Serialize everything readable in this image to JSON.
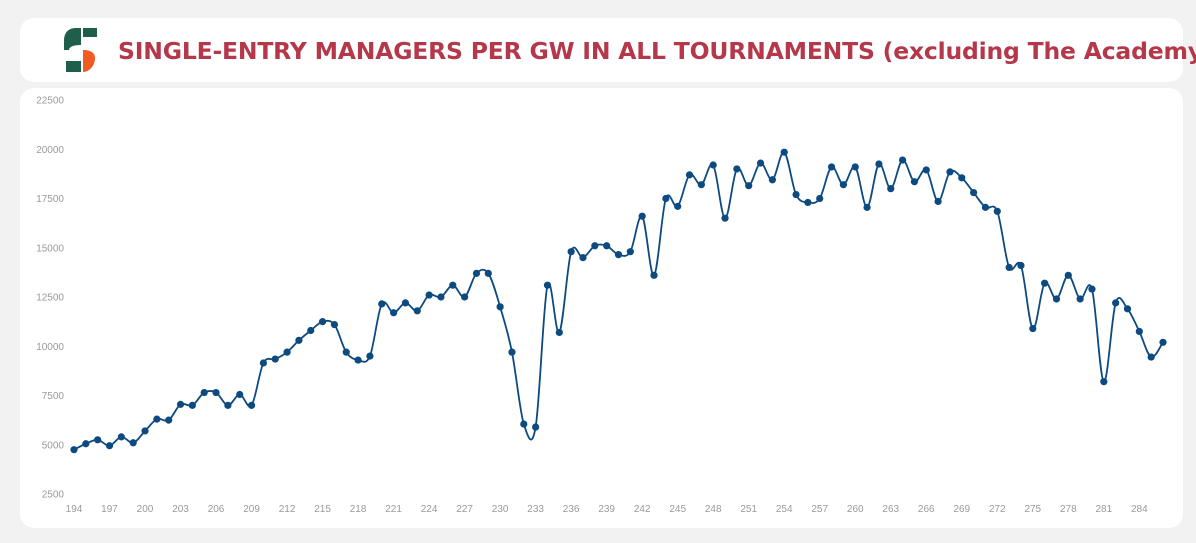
{
  "header": {
    "title": "SINGLE-ENTRY MANAGERS PER GW IN ALL TOURNAMENTS (excluding The Academy)"
  },
  "colors": {
    "title": "#b5384a",
    "line": "#0d4a80",
    "logo_green": "#1e5e4a",
    "logo_orange": "#f15a22"
  },
  "chart_data": {
    "type": "line",
    "title": "SINGLE-ENTRY MANAGERS PER GW IN ALL TOURNAMENTS (excluding The Academy)",
    "xlabel": "",
    "ylabel": "",
    "ylim": [
      2500,
      22500
    ],
    "yticks": [
      2500,
      5000,
      7500,
      10000,
      12500,
      15000,
      17500,
      20000,
      22500
    ],
    "xticks": [
      194,
      197,
      200,
      203,
      206,
      209,
      212,
      215,
      218,
      221,
      224,
      227,
      230,
      233,
      236,
      239,
      242,
      245,
      248,
      251,
      254,
      257,
      260,
      263,
      266,
      269,
      272,
      275,
      278,
      281,
      284
    ],
    "grid": false,
    "legend": "none",
    "x": [
      194,
      195,
      196,
      197,
      198,
      199,
      200,
      201,
      202,
      203,
      204,
      205,
      206,
      207,
      208,
      209,
      210,
      211,
      212,
      213,
      214,
      215,
      216,
      217,
      218,
      219,
      220,
      221,
      222,
      223,
      224,
      225,
      226,
      227,
      228,
      229,
      230,
      231,
      232,
      233,
      234,
      235,
      236,
      237,
      238,
      239,
      240,
      241,
      242,
      243,
      244,
      245,
      246,
      247,
      248,
      249,
      250,
      251,
      252,
      253,
      254,
      255,
      256,
      257,
      258,
      259,
      260,
      261,
      262,
      263,
      264,
      265,
      266,
      267,
      268,
      269,
      270,
      271,
      272,
      273,
      274,
      275,
      276,
      277,
      278,
      279,
      280,
      281,
      282,
      283,
      284,
      285,
      286
    ],
    "values": [
      4750,
      5050,
      5250,
      4950,
      5400,
      5100,
      5700,
      6300,
      6250,
      7050,
      7000,
      7650,
      7650,
      7000,
      7550,
      7000,
      9150,
      9350,
      9700,
      10300,
      10800,
      11250,
      11100,
      9700,
      9300,
      9500,
      12150,
      11700,
      12200,
      11800,
      12600,
      12500,
      13100,
      12500,
      13700,
      13700,
      12000,
      9700,
      6050,
      5900,
      13100,
      10700,
      14800,
      14500,
      15100,
      15100,
      14650,
      14800,
      16600,
      13600,
      17500,
      17100,
      18700,
      18200,
      19200,
      16500,
      19000,
      18150,
      19300,
      18450,
      19850,
      17700,
      17300,
      17500,
      19100,
      18200,
      19100,
      17050,
      19250,
      18000,
      19450,
      18350,
      18950,
      17350,
      18850,
      18550,
      17800,
      17050,
      16850,
      14000,
      14100,
      10900,
      13200,
      12400,
      13600,
      12400,
      12900,
      8200,
      12200,
      11900,
      10750,
      9450,
      10200
    ]
  }
}
